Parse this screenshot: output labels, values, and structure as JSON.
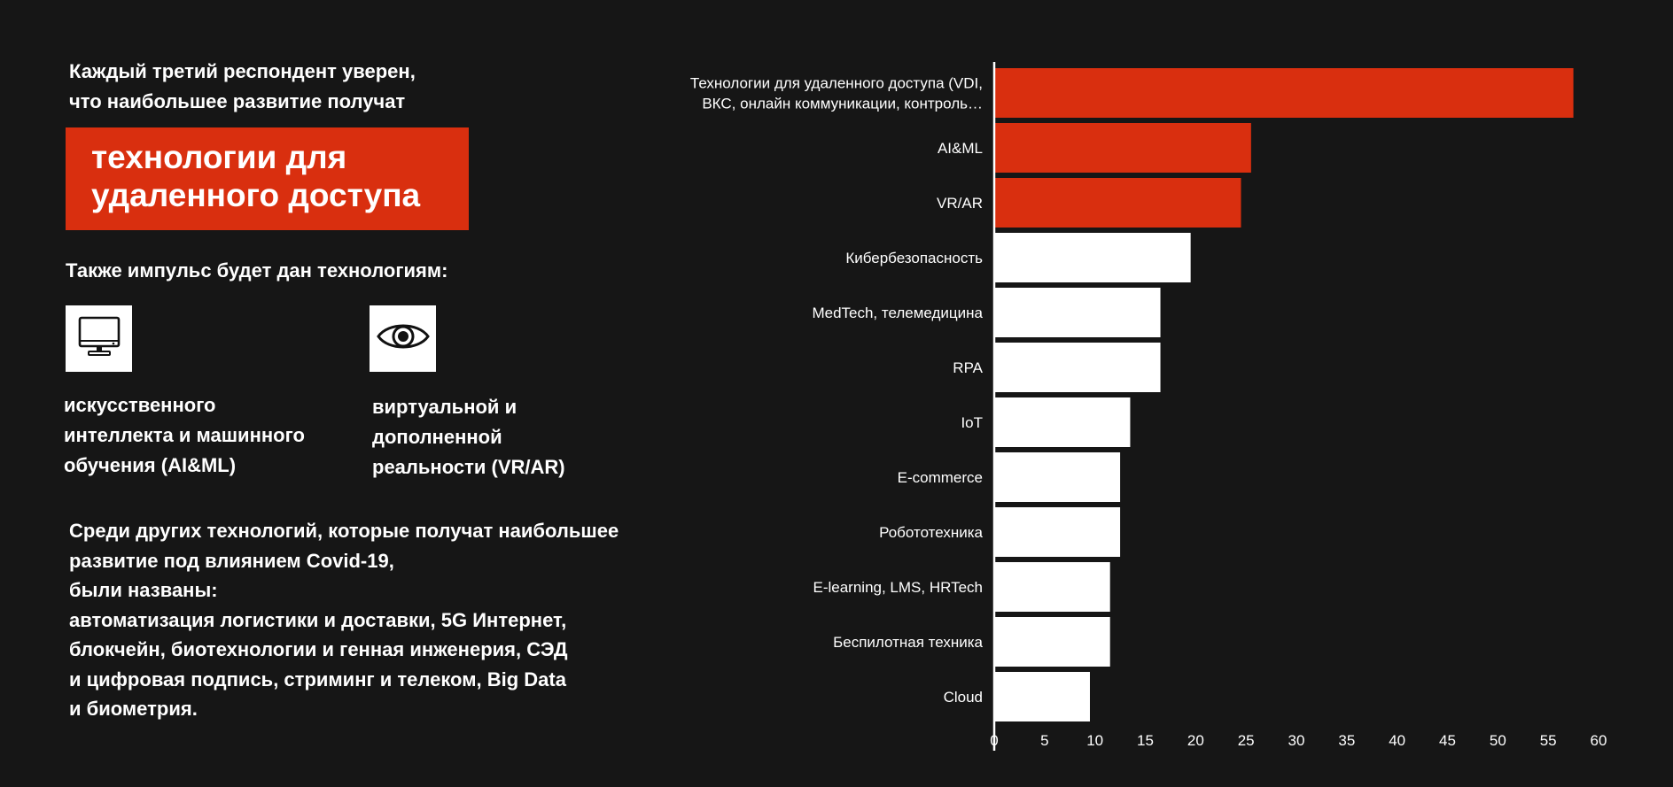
{
  "left": {
    "intro": "Каждый третий респондент уверен,\nчто наибольшее развитие получат",
    "highlight": "технологии для\nудаленного доступа",
    "also": "Также импульс будет дан технологиям:",
    "tiles": [
      {
        "icon": "monitor-icon",
        "caption": "искусственного\nинтеллекта и машинного\nобучения (AI&ML)"
      },
      {
        "icon": "eye-icon",
        "caption": "виртуальной и\nдополненной\nреальности (VR/AR)"
      }
    ],
    "other": "Среди других технологий, которые получат наибольшее\nразвитие под влиянием Covid-19,\nбыли названы:\nавтоматизация логистики и доставки, 5G Интернет,\nблокчейн, биотехнологии и генная инженерия, СЭД\nи цифровая подпись, стриминг и телеком, Big Data\nи биометрия."
  },
  "colors": {
    "background": "#161616",
    "accent": "#d92f0f",
    "bar_default": "#ffffff",
    "text": "#ffffff"
  },
  "chart_data": {
    "type": "bar",
    "orientation": "horizontal",
    "categories": [
      [
        "Технологии для удаленного доступа (VDI,",
        "ВКС, онлайн коммуникации, контроль…"
      ],
      [
        "AI&ML"
      ],
      [
        "VR/AR"
      ],
      [
        "Кибербезопасность"
      ],
      [
        "MedTech, телемедицина"
      ],
      [
        "RPA"
      ],
      [
        "IoT"
      ],
      [
        "E-commerce"
      ],
      [
        "Робототехника"
      ],
      [
        "E-learning, LMS, HRTech"
      ],
      [
        "Беспилотная техника"
      ],
      [
        "Cloud"
      ]
    ],
    "values": [
      57.5,
      25.5,
      24.5,
      19.5,
      16.5,
      16.5,
      13.5,
      12.5,
      12.5,
      11.5,
      11.5,
      9.5
    ],
    "highlighted": [
      true,
      true,
      true,
      false,
      false,
      false,
      false,
      false,
      false,
      false,
      false,
      false
    ],
    "xlim": [
      0,
      60
    ],
    "xticks": [
      0,
      5,
      10,
      15,
      20,
      25,
      30,
      35,
      40,
      45,
      50,
      55,
      60
    ],
    "grid": false,
    "legend": "none"
  }
}
